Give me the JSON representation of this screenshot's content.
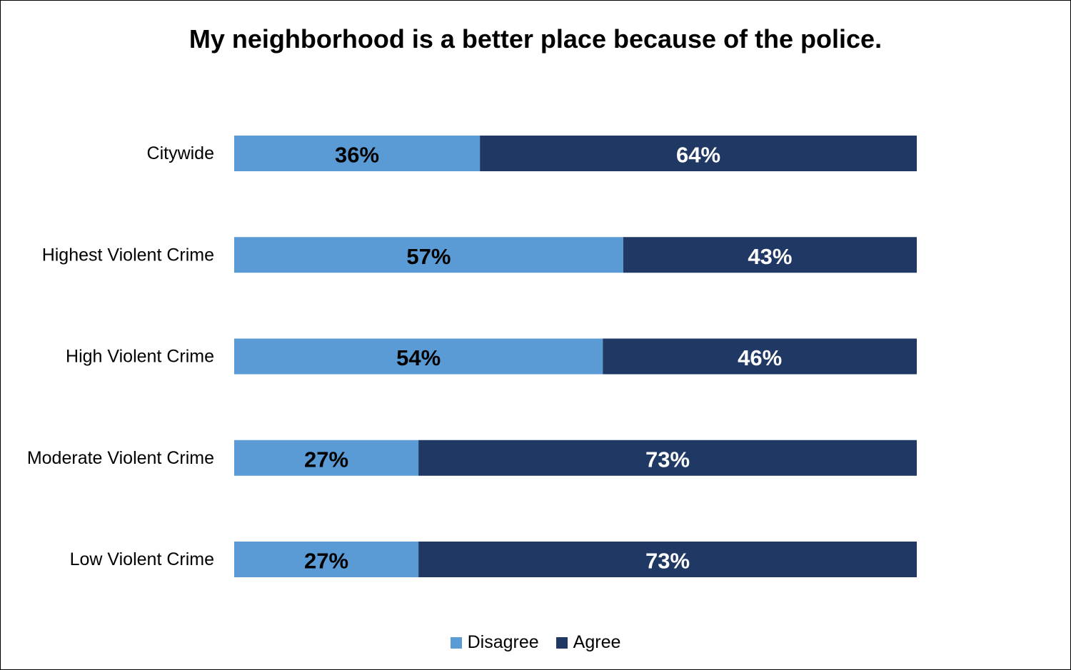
{
  "chart_data": {
    "type": "bar",
    "orientation": "horizontal",
    "stacked": true,
    "title": "My neighborhood is a better place because of the police.",
    "categories": [
      "Citywide",
      "Highest Violent Crime",
      "High Violent Crime",
      "Moderate Violent Crime",
      "Low Violent Crime"
    ],
    "series": [
      {
        "name": "Disagree",
        "values": [
          36,
          57,
          54,
          27,
          27
        ],
        "labels": [
          "36%",
          "57%",
          "54%",
          "27%",
          "27%"
        ],
        "color": "#5b9bd5",
        "label_color": "#000000"
      },
      {
        "name": "Agree",
        "values": [
          64,
          43,
          46,
          73,
          73
        ],
        "labels": [
          "64%",
          "43%",
          "46%",
          "73%",
          "73%"
        ],
        "color": "#203864",
        "label_color": "#ffffff"
      }
    ],
    "xlim": [
      0,
      100
    ],
    "grid": false,
    "legend_position": "bottom"
  }
}
